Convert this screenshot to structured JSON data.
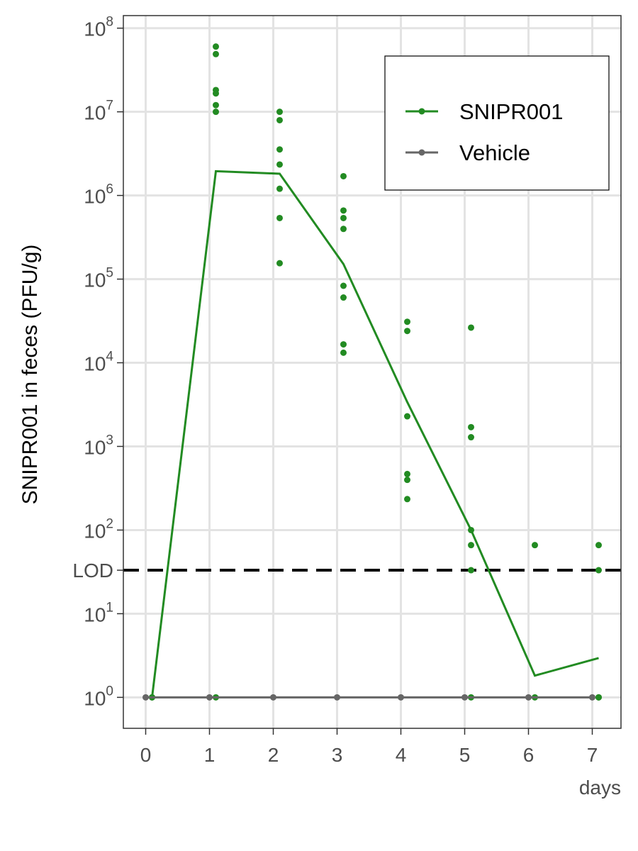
{
  "chart_data": {
    "type": "scatter",
    "title": "",
    "xlabel": "days",
    "ylabel": "SNIPR001 in feces (PFU/g)",
    "xlim": [
      -0.35,
      7.45
    ],
    "ylim": [
      -0.37,
      8.15
    ],
    "y_scale": "log10",
    "x_ticks": [
      "0",
      "1",
      "2",
      "3",
      "4",
      "5",
      "6",
      "7"
    ],
    "y_ticks": [
      {
        "exp": 0,
        "base": "10",
        "sup": "0"
      },
      {
        "exp": 1,
        "base": "10",
        "sup": "1"
      },
      {
        "exp": 2,
        "base": "10",
        "sup": "2"
      },
      {
        "exp": 3,
        "base": "10",
        "sup": "3"
      },
      {
        "exp": 4,
        "base": "10",
        "sup": "4"
      },
      {
        "exp": 5,
        "base": "10",
        "sup": "5"
      },
      {
        "exp": 6,
        "base": "10",
        "sup": "6"
      },
      {
        "exp": 7,
        "base": "10",
        "sup": "7"
      },
      {
        "exp": 8,
        "base": "10",
        "sup": "8"
      }
    ],
    "grid": true,
    "legend_position": "top-right",
    "reference_line": {
      "label": "LOD",
      "value": 1.52,
      "style": "dashed"
    },
    "series": [
      {
        "name": "SNIPR001",
        "color": "#228b22",
        "line": [
          [
            0.1,
            0
          ],
          [
            1.1,
            6.29
          ],
          [
            2.1,
            6.26
          ],
          [
            3.1,
            5.18
          ],
          [
            4.1,
            3.53
          ],
          [
            5.1,
            2.0
          ],
          [
            6.1,
            0.26
          ],
          [
            7.1,
            0.47
          ]
        ],
        "points": [
          [
            0.1,
            0
          ],
          [
            0.1,
            0
          ],
          [
            1.1,
            0
          ],
          [
            1.1,
            7.0
          ],
          [
            1.1,
            7.08
          ],
          [
            1.1,
            7.22
          ],
          [
            1.1,
            7.26
          ],
          [
            1.1,
            7.69
          ],
          [
            1.1,
            7.78
          ],
          [
            2.1,
            5.19
          ],
          [
            2.1,
            5.73
          ],
          [
            2.1,
            6.08
          ],
          [
            2.1,
            6.37
          ],
          [
            2.1,
            6.55
          ],
          [
            2.1,
            6.9
          ],
          [
            2.1,
            7.0
          ],
          [
            3.1,
            4.12
          ],
          [
            3.1,
            4.22
          ],
          [
            3.1,
            4.78
          ],
          [
            3.1,
            4.92
          ],
          [
            3.1,
            5.6
          ],
          [
            3.1,
            5.73
          ],
          [
            3.1,
            5.82
          ],
          [
            3.1,
            6.23
          ],
          [
            4.1,
            2.37
          ],
          [
            4.1,
            2.6
          ],
          [
            4.1,
            2.67
          ],
          [
            4.1,
            3.36
          ],
          [
            4.1,
            4.38
          ],
          [
            4.1,
            4.49
          ],
          [
            5.1,
            0
          ],
          [
            5.1,
            1.52
          ],
          [
            5.1,
            1.82
          ],
          [
            5.1,
            2.0
          ],
          [
            5.1,
            3.11
          ],
          [
            5.1,
            3.23
          ],
          [
            5.1,
            4.42
          ],
          [
            6.1,
            0
          ],
          [
            6.1,
            1.82
          ],
          [
            7.1,
            0
          ],
          [
            7.1,
            0
          ],
          [
            7.1,
            1.52
          ],
          [
            7.1,
            1.82
          ]
        ]
      },
      {
        "name": "Vehicle",
        "color": "#666666",
        "line": [
          [
            0,
            0
          ],
          [
            1,
            0
          ],
          [
            2,
            0
          ],
          [
            3,
            0
          ],
          [
            4,
            0
          ],
          [
            5,
            0
          ],
          [
            6,
            0
          ],
          [
            7,
            0
          ]
        ],
        "points": [
          [
            0,
            0
          ],
          [
            1,
            0
          ],
          [
            2,
            0
          ],
          [
            3,
            0
          ],
          [
            4,
            0
          ],
          [
            5,
            0
          ],
          [
            6,
            0
          ],
          [
            7,
            0
          ]
        ]
      }
    ]
  }
}
